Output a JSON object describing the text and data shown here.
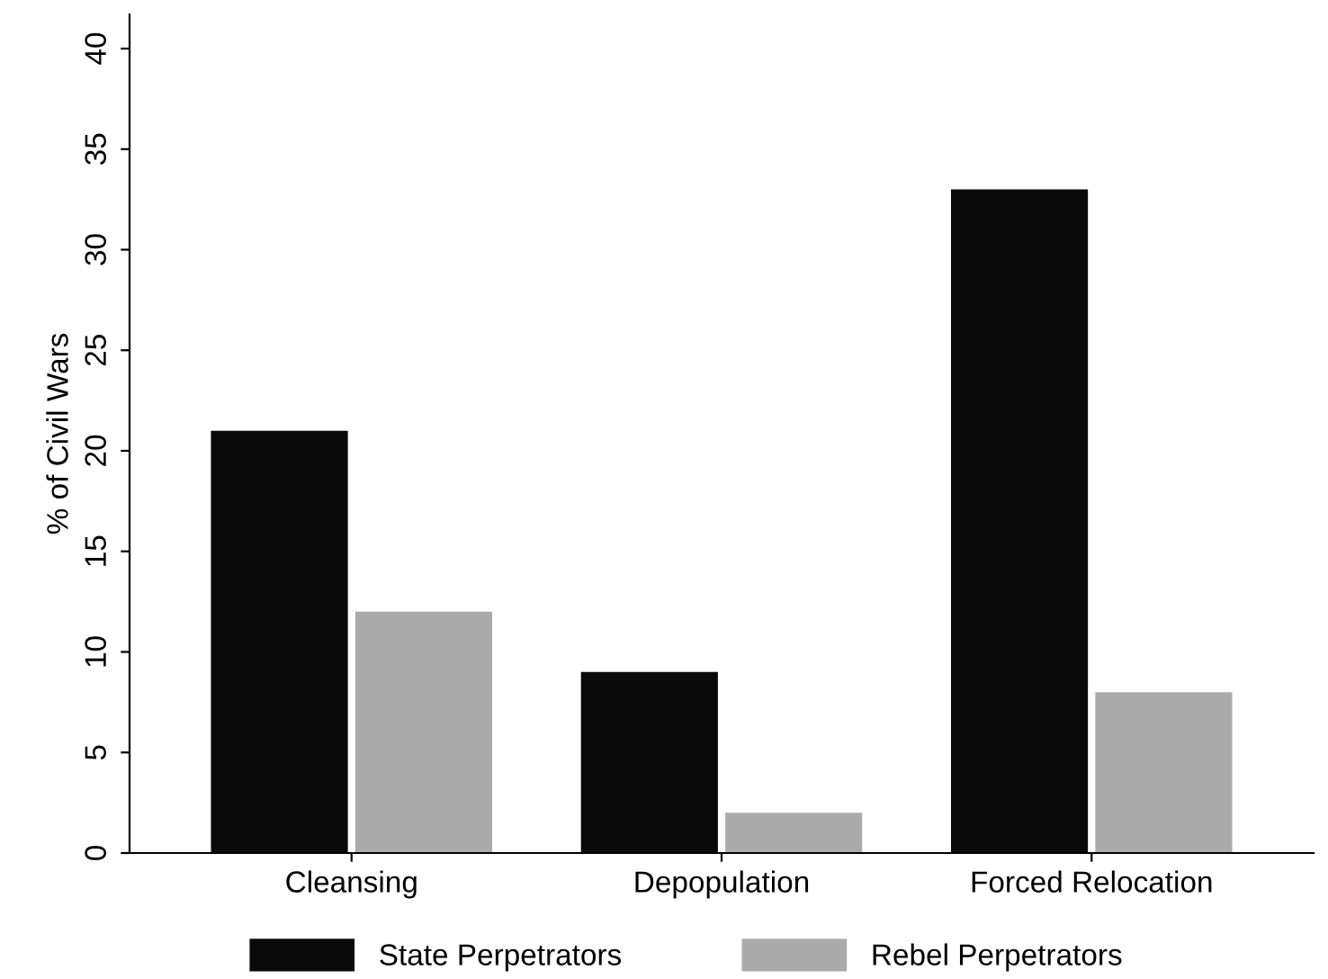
{
  "chart_data": {
    "type": "bar",
    "ylabel": "% of Civil Wars",
    "categories": [
      "Cleansing",
      "Depopulation",
      "Forced Relocation"
    ],
    "series": [
      {
        "name": "State Perpetrators",
        "color": "#0a0a0a",
        "values": [
          21,
          9,
          33
        ]
      },
      {
        "name": "Rebel Perpetrators",
        "color": "#ababab",
        "values": [
          12,
          2,
          8
        ]
      }
    ],
    "ylim": [
      0,
      41.7
    ],
    "yticks": [
      0,
      5,
      10,
      15,
      20,
      25,
      30,
      35,
      40
    ],
    "grid": false,
    "legend": "bottom"
  }
}
